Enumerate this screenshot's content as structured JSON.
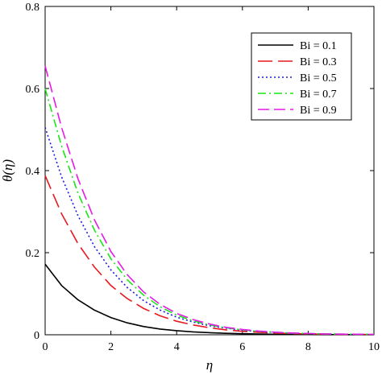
{
  "chart_data": {
    "type": "line",
    "xlabel": "η",
    "ylabel": "θ(η)",
    "xlim": [
      0,
      10
    ],
    "ylim": [
      0,
      0.8
    ],
    "xticks": [
      0,
      2,
      4,
      6,
      8,
      10
    ],
    "yticks": [
      0,
      0.2,
      0.4,
      0.6,
      0.8
    ],
    "xtick_labels": [
      "0",
      "2",
      "4",
      "6",
      "8",
      "10"
    ],
    "ytick_labels": [
      "0",
      "0.2",
      "0.4",
      "0.6",
      "0.8"
    ],
    "legend_position": "top-right",
    "grid": false,
    "x": [
      0,
      0.5,
      1,
      1.5,
      2,
      2.5,
      3,
      3.5,
      4,
      4.5,
      5,
      5.5,
      6,
      6.5,
      7,
      7.5,
      8,
      8.5,
      9,
      9.5,
      10
    ],
    "series": [
      {
        "name": "Bi = 0.1",
        "color": "#000000",
        "dash": "solid",
        "values": [
          0.172,
          0.12,
          0.085,
          0.06,
          0.042,
          0.029,
          0.02,
          0.014,
          0.01,
          0.007,
          0.005,
          0.0035,
          0.0025,
          0.0017,
          0.0012,
          0.0008,
          0.0006,
          0.0004,
          0.0003,
          0.0002,
          0.0001
        ]
      },
      {
        "name": "Bi = 0.3",
        "color": "#e8191e",
        "dash": "long-dash",
        "values": [
          0.388,
          0.295,
          0.222,
          0.165,
          0.12,
          0.088,
          0.064,
          0.046,
          0.033,
          0.024,
          0.017,
          0.012,
          0.0085,
          0.006,
          0.0042,
          0.003,
          0.002,
          0.0014,
          0.001,
          0.0007,
          0.0005
        ]
      },
      {
        "name": "Bi = 0.5",
        "color": "#1a1ae6",
        "dash": "dotted",
        "values": [
          0.505,
          0.385,
          0.29,
          0.215,
          0.158,
          0.115,
          0.083,
          0.06,
          0.043,
          0.031,
          0.022,
          0.016,
          0.011,
          0.008,
          0.0056,
          0.004,
          0.0028,
          0.002,
          0.0014,
          0.001,
          0.0007
        ]
      },
      {
        "name": "Bi = 0.7",
        "color": "#19e619",
        "dash": "dash-dot",
        "values": [
          0.6,
          0.46,
          0.345,
          0.255,
          0.185,
          0.134,
          0.096,
          0.068,
          0.048,
          0.034,
          0.024,
          0.017,
          0.012,
          0.0085,
          0.006,
          0.0042,
          0.003,
          0.0021,
          0.0015,
          0.001,
          0.0007
        ]
      },
      {
        "name": "Bi = 0.9",
        "color": "#e619e6",
        "dash": "dash",
        "values": [
          0.655,
          0.505,
          0.38,
          0.28,
          0.203,
          0.146,
          0.104,
          0.074,
          0.052,
          0.037,
          0.026,
          0.018,
          0.013,
          0.009,
          0.0063,
          0.0044,
          0.0031,
          0.0022,
          0.0015,
          0.0011,
          0.0008
        ]
      }
    ]
  }
}
